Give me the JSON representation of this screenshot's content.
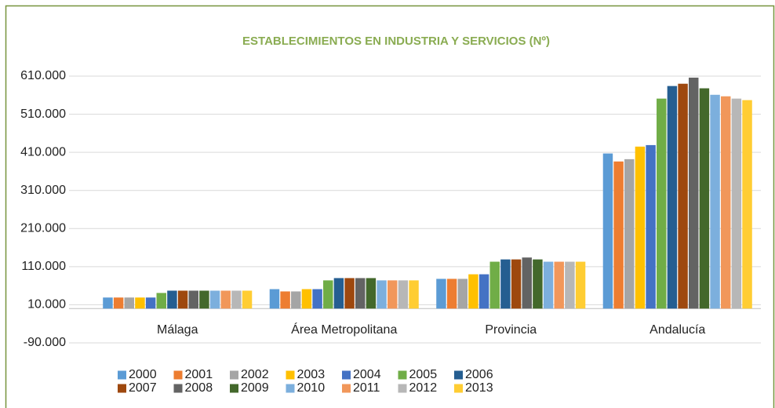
{
  "chart_data": {
    "type": "bar",
    "title": "ESTABLECIMIENTOS EN INDUSTRIA Y SERVICIOS (Nº)",
    "categories": [
      "Málaga",
      "Área Metropolitana",
      "Provincia",
      "Andalucía"
    ],
    "ylim": [
      -90000,
      610000
    ],
    "yticks": [
      {
        "value": -90000,
        "label": "-90.000"
      },
      {
        "value": 10000,
        "label": "10.000"
      },
      {
        "value": 110000,
        "label": "110.000"
      },
      {
        "value": 210000,
        "label": "210.000"
      },
      {
        "value": 310000,
        "label": "310.000"
      },
      {
        "value": 410000,
        "label": "410.000"
      },
      {
        "value": 510000,
        "label": "510.000"
      },
      {
        "value": 610000,
        "label": "610.000"
      }
    ],
    "grid": true,
    "legend": "bottom",
    "series": [
      {
        "name": "2000",
        "color": "#5b9bd5",
        "values": [
          29000,
          51000,
          78000,
          407000
        ]
      },
      {
        "name": "2001",
        "color": "#ed7d31",
        "values": [
          29000,
          45000,
          78000,
          386000
        ]
      },
      {
        "name": "2002",
        "color": "#a5a5a5",
        "values": [
          29000,
          45000,
          78000,
          392000
        ]
      },
      {
        "name": "2003",
        "color": "#ffc000",
        "values": [
          29000,
          51000,
          90000,
          425000
        ]
      },
      {
        "name": "2004",
        "color": "#4472c4",
        "values": [
          29000,
          51000,
          90000,
          429000
        ]
      },
      {
        "name": "2005",
        "color": "#70ad47",
        "values": [
          41000,
          74000,
          123000,
          551000
        ]
      },
      {
        "name": "2006",
        "color": "#255e91",
        "values": [
          47000,
          80000,
          129000,
          584000
        ]
      },
      {
        "name": "2007",
        "color": "#9e480e",
        "values": [
          47000,
          80000,
          129000,
          590000
        ]
      },
      {
        "name": "2008",
        "color": "#636363",
        "values": [
          47000,
          80000,
          134000,
          606000
        ]
      },
      {
        "name": "2009",
        "color": "#43682b",
        "values": [
          47000,
          80000,
          129000,
          578000
        ]
      },
      {
        "name": "2010",
        "color": "#7cafdd",
        "values": [
          47000,
          74000,
          123000,
          561000
        ]
      },
      {
        "name": "2011",
        "color": "#f1975a",
        "values": [
          47000,
          74000,
          123000,
          557000
        ]
      },
      {
        "name": "2012",
        "color": "#b7b7b7",
        "values": [
          47000,
          74000,
          123000,
          551000
        ]
      },
      {
        "name": "2013",
        "color": "#ffcd33",
        "values": [
          47000,
          74000,
          123000,
          547000
        ]
      }
    ]
  }
}
